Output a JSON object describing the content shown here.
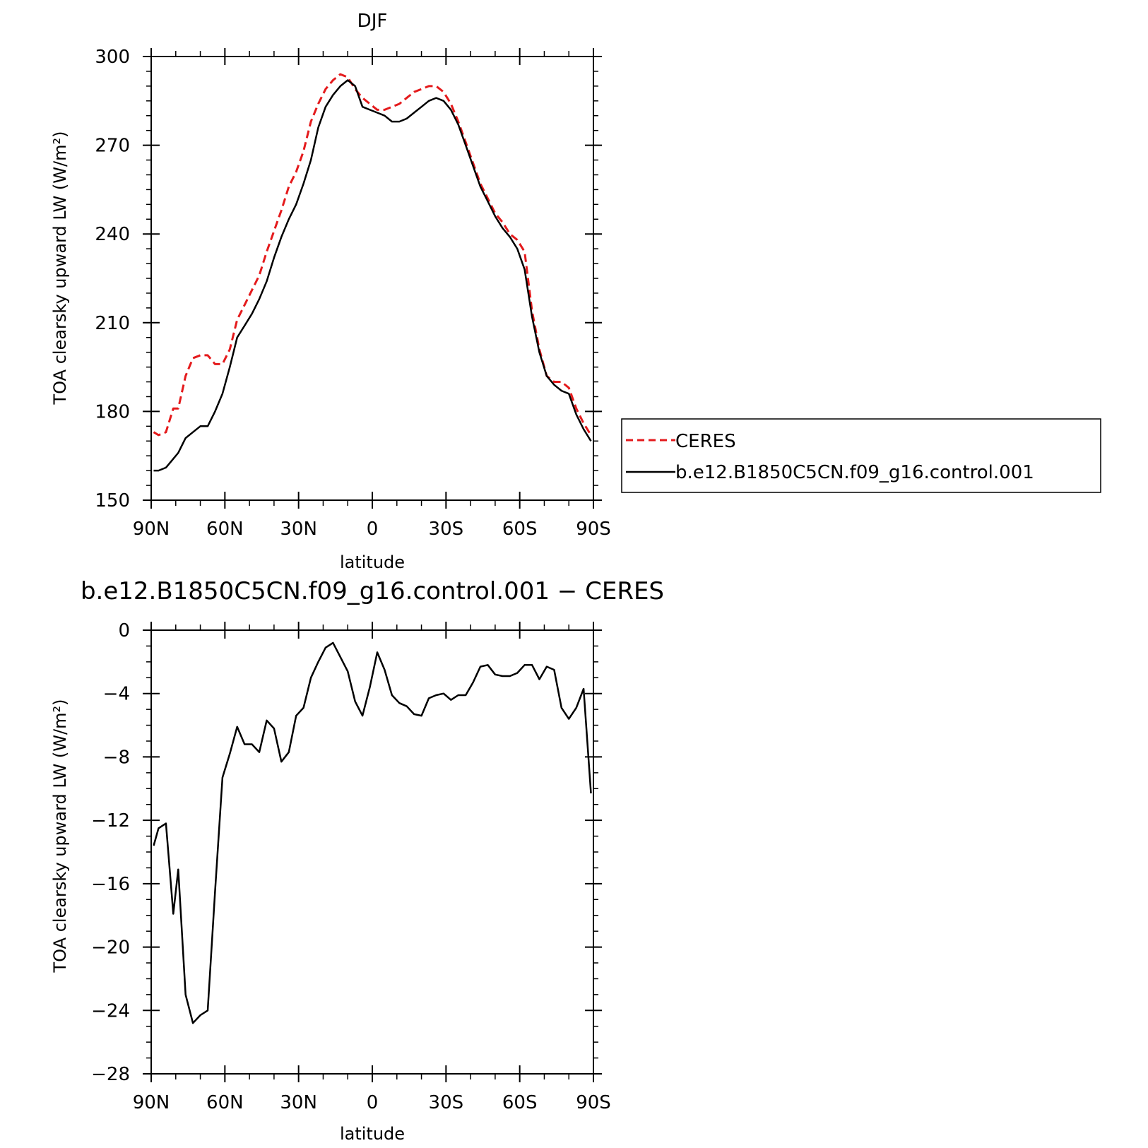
{
  "chart_data": [
    {
      "type": "line",
      "title": "DJF",
      "xlabel": "latitude",
      "ylabel": "TOA clearsky upward LW (W/m²)",
      "xlim": [
        -90,
        90
      ],
      "ylim": [
        150,
        300
      ],
      "x_tick_labels": [
        "90N",
        "60N",
        "30N",
        "0",
        "30S",
        "60S",
        "90S"
      ],
      "y_tick_labels": [
        "150",
        "180",
        "210",
        "240",
        "270",
        "300"
      ],
      "x_note": "x values in degrees latitude, north negative to south positive, matching the 90N to 90S axis",
      "legend": {
        "position": "right",
        "entries": [
          "CERES",
          "b.e12.B1850C5CN.f09_g16.control.001"
        ]
      },
      "series": [
        {
          "name": "CERES",
          "color": "#e41a1c",
          "style": "dashed",
          "x": [
            -89,
            -87,
            -84,
            -81,
            -79,
            -76,
            -73,
            -70,
            -67,
            -64,
            -61,
            -58,
            -55,
            -52,
            -49,
            -46,
            -43,
            -40,
            -37,
            -34,
            -31,
            -28,
            -25,
            -22,
            -19,
            -16,
            -13,
            -10,
            -7,
            -4,
            -1,
            2,
            5,
            8,
            11,
            14,
            17,
            20,
            23,
            26,
            29,
            32,
            35,
            38,
            41,
            44,
            47,
            50,
            53,
            56,
            59,
            62,
            65,
            68,
            71,
            74,
            77,
            80,
            83,
            86,
            89
          ],
          "y": [
            173,
            172,
            173,
            181,
            181,
            192,
            198,
            199,
            199,
            196,
            196,
            201,
            211,
            216,
            221,
            226,
            234,
            241,
            248,
            256,
            261,
            268,
            278,
            284,
            289,
            292,
            294,
            293,
            289,
            286,
            284,
            282,
            282,
            283,
            284,
            286,
            288,
            289,
            290,
            290,
            288,
            284,
            278,
            271,
            264,
            257,
            252,
            247,
            244,
            240,
            238,
            234,
            214,
            201,
            192,
            190,
            190,
            188,
            181,
            176,
            172
          ]
        },
        {
          "name": "b.e12.B1850C5CN.f09_g16.control.001",
          "color": "#000000",
          "style": "solid",
          "x": [
            -89,
            -87,
            -84,
            -81,
            -79,
            -76,
            -73,
            -70,
            -67,
            -64,
            -61,
            -58,
            -55,
            -52,
            -49,
            -46,
            -43,
            -40,
            -37,
            -34,
            -31,
            -28,
            -25,
            -22,
            -19,
            -16,
            -13,
            -10,
            -7,
            -4,
            -1,
            2,
            5,
            8,
            11,
            14,
            17,
            20,
            23,
            26,
            29,
            32,
            35,
            38,
            41,
            44,
            47,
            50,
            53,
            56,
            59,
            62,
            65,
            68,
            71,
            74,
            77,
            80,
            83,
            86,
            89
          ],
          "y": [
            160,
            160,
            161,
            164,
            166,
            171,
            173,
            175,
            175,
            180,
            186,
            195,
            205,
            209,
            213,
            218,
            224,
            232,
            239,
            245,
            250,
            257,
            265,
            276,
            283,
            287,
            290,
            292,
            290,
            283,
            282,
            281,
            280,
            278,
            278,
            279,
            281,
            283,
            285,
            286,
            285,
            282,
            277,
            270,
            263,
            256,
            251,
            246,
            242,
            239,
            235,
            228,
            212,
            200,
            192,
            189,
            187,
            186,
            179,
            174,
            170
          ]
        }
      ]
    },
    {
      "type": "line",
      "title": "b.e12.B1850C5CN.f09_g16.control.001 − CERES",
      "xlabel": "latitude",
      "ylabel": "TOA clearsky upward LW (W/m²)",
      "xlim": [
        -90,
        90
      ],
      "ylim": [
        -28,
        0
      ],
      "x_tick_labels": [
        "90N",
        "60N",
        "30N",
        "0",
        "30S",
        "60S",
        "90S"
      ],
      "y_tick_labels": [
        "0",
        "−4",
        "−8",
        "−12",
        "−16",
        "−20",
        "−24",
        "−28"
      ],
      "series": [
        {
          "color": "#000000",
          "style": "solid",
          "x": [
            -89,
            -87,
            -84,
            -81,
            -79,
            -76,
            -73,
            -70,
            -67,
            -64,
            -61,
            -58,
            -55,
            -52,
            -49,
            -46,
            -43,
            -40,
            -37,
            -34,
            -31,
            -28,
            -25,
            -22,
            -19,
            -16,
            -13,
            -10,
            -7,
            -4,
            -1,
            2,
            5,
            8,
            11,
            14,
            17,
            20,
            23,
            26,
            29,
            32,
            35,
            38,
            41,
            44,
            47,
            50,
            53,
            56,
            59,
            62,
            65,
            68,
            71,
            74,
            77,
            80,
            83,
            86,
            89
          ],
          "y": [
            -13.6,
            -12.5,
            -12.2,
            -17.9,
            -15.1,
            -23.0,
            -24.8,
            -24.3,
            -24.0,
            -16.5,
            -9.3,
            -7.8,
            -6.1,
            -7.2,
            -7.2,
            -7.7,
            -5.7,
            -6.2,
            -8.3,
            -7.7,
            -5.4,
            -4.9,
            -3.0,
            -2.0,
            -1.1,
            -0.8,
            -1.7,
            -2.6,
            -4.5,
            -5.4,
            -3.6,
            -1.4,
            -2.5,
            -4.1,
            -4.6,
            -4.8,
            -5.3,
            -5.4,
            -4.3,
            -4.1,
            -4.0,
            -4.4,
            -4.1,
            -4.1,
            -3.3,
            -2.3,
            -2.2,
            -2.8,
            -2.9,
            -2.9,
            -2.7,
            -2.2,
            -2.2,
            -3.1,
            -2.3,
            -2.5,
            -4.9,
            -5.6,
            -4.9,
            -3.7,
            -10.3
          ]
        }
      ]
    }
  ]
}
